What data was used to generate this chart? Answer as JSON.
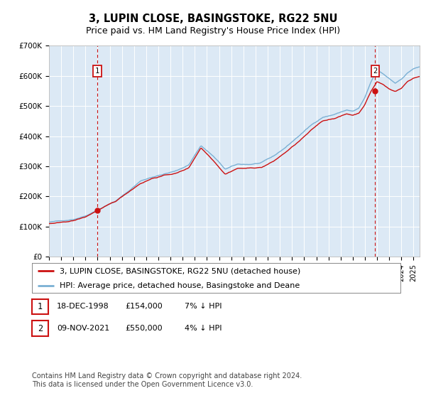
{
  "title": "3, LUPIN CLOSE, BASINGSTOKE, RG22 5NU",
  "subtitle": "Price paid vs. HM Land Registry's House Price Index (HPI)",
  "ylim": [
    0,
    700000
  ],
  "yticks": [
    0,
    100000,
    200000,
    300000,
    400000,
    500000,
    600000,
    700000
  ],
  "ytick_labels": [
    "£0",
    "£100K",
    "£200K",
    "£300K",
    "£400K",
    "£500K",
    "£600K",
    "£700K"
  ],
  "xlim_start": 1995,
  "xlim_end": 2025.5,
  "background_color": "#ffffff",
  "plot_bg_color": "#dce9f5",
  "grid_color": "#ffffff",
  "hpi_color": "#7ab0d4",
  "price_color": "#cc1111",
  "vline_color": "#cc1111",
  "sale1_year": 1998.96,
  "sale1_price": 154000,
  "sale2_year": 2021.84,
  "sale2_price": 550000,
  "legend_line1": "3, LUPIN CLOSE, BASINGSTOKE, RG22 5NU (detached house)",
  "legend_line2": "HPI: Average price, detached house, Basingstoke and Deane",
  "table_row1": [
    "1",
    "18-DEC-1998",
    "£154,000",
    "7% ↓ HPI"
  ],
  "table_row2": [
    "2",
    "09-NOV-2021",
    "£550,000",
    "4% ↓ HPI"
  ],
  "footnote": "Contains HM Land Registry data © Crown copyright and database right 2024.\nThis data is licensed under the Open Government Licence v3.0.",
  "title_fontsize": 10.5,
  "subtitle_fontsize": 9,
  "tick_fontsize": 7.5,
  "legend_fontsize": 8,
  "table_fontsize": 8,
  "footnote_fontsize": 7
}
